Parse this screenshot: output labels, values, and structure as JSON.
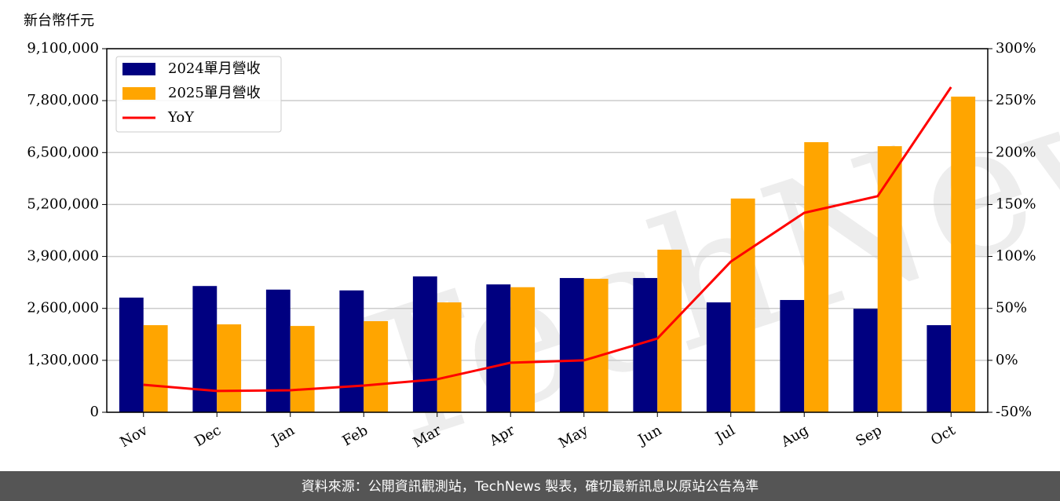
{
  "chart_data": {
    "type": "bar_line",
    "y_label": "新台幣仟元",
    "watermark": "TechNews",
    "footer": "資料來源：公開資訊觀測站，TechNews 製表，確切最新訊息以原站公告為準",
    "categories": [
      "Nov",
      "Dec",
      "Jan",
      "Feb",
      "Mar",
      "Apr",
      "May",
      "Jun",
      "Jul",
      "Aug",
      "Sep",
      "Oct"
    ],
    "series": [
      {
        "name": "2024單月營收",
        "color": "#000080",
        "type": "bar",
        "values": [
          2870000,
          3160000,
          3070000,
          3050000,
          3400000,
          3200000,
          3360000,
          3360000,
          2750000,
          2810000,
          2590000,
          2180000
        ]
      },
      {
        "name": "2025單月營收",
        "color": "#ffa500",
        "type": "bar",
        "values": [
          2180000,
          2200000,
          2160000,
          2280000,
          2750000,
          3130000,
          3340000,
          4070000,
          5350000,
          6760000,
          6660000,
          7900000
        ]
      },
      {
        "name": "YoY",
        "color": "#ff0000",
        "type": "line",
        "axis": "y2",
        "values": [
          -23.5,
          -29.5,
          -28.8,
          -24.3,
          -18.2,
          -2.3,
          0,
          21,
          95,
          142,
          158,
          263
        ]
      }
    ],
    "ylim": [
      0,
      9100000
    ],
    "yticks": [
      0,
      {
        "value": 1300000,
        "label": "1,300,000"
      },
      {
        "value": 2600000,
        "label": "2,600,000"
      },
      {
        "value": 3900000,
        "label": "3,900,000"
      },
      {
        "value": 5200000,
        "label": "5,200,000"
      },
      {
        "value": 6500000,
        "label": "6,500,000"
      },
      {
        "value": 7800000,
        "label": "7,800,000"
      },
      {
        "value": 9100000,
        "label": "9,100,000"
      }
    ],
    "y2lim": [
      -50,
      300
    ],
    "y2ticks": [
      {
        "value": -50,
        "label": "-50%"
      },
      {
        "value": 0,
        "label": "0%"
      },
      {
        "value": 50,
        "label": "50%"
      },
      {
        "value": 100,
        "label": "100%"
      },
      {
        "value": 150,
        "label": "150%"
      },
      {
        "value": 200,
        "label": "200%"
      },
      {
        "value": 250,
        "label": "250%"
      },
      {
        "value": 300,
        "label": "300%"
      }
    ],
    "grid": true,
    "legend": "upper-left"
  }
}
